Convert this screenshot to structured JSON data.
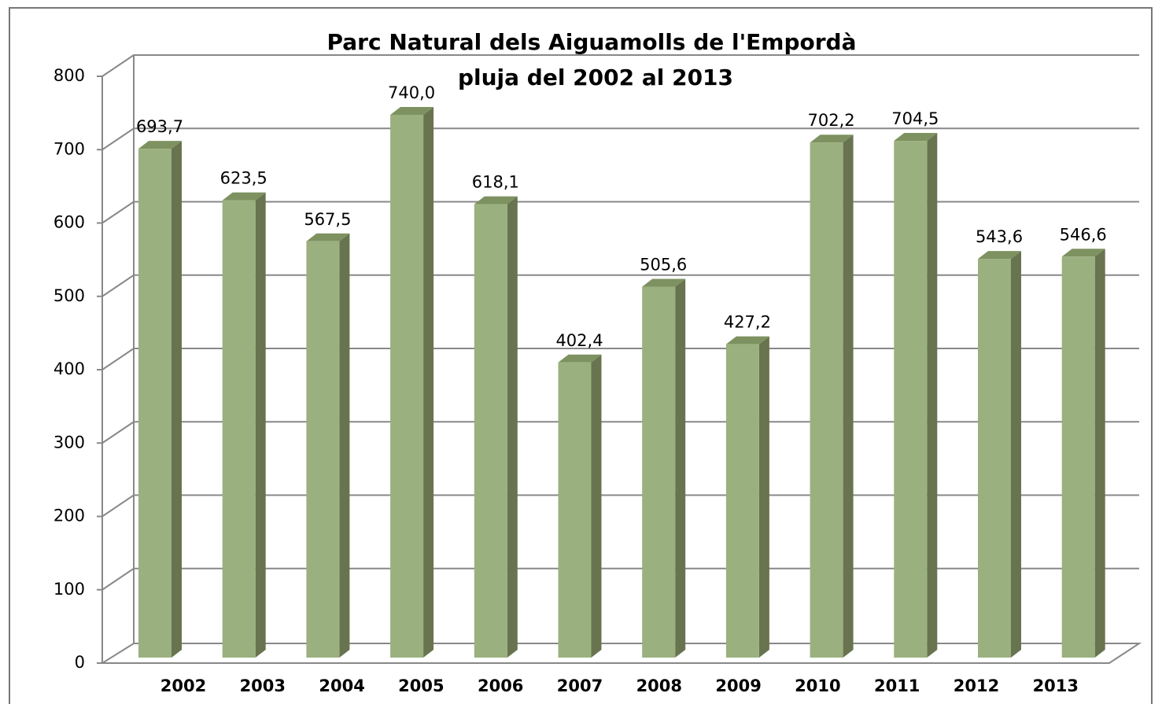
{
  "chart_data": {
    "type": "bar3d",
    "title": "Parc Natural dels Aiguamolls de l'Empordà",
    "subtitle": "pluja  del 2002 al 2013",
    "categories": [
      "2002",
      "2003",
      "2004",
      "2005",
      "2006",
      "2007",
      "2008",
      "2009",
      "2010",
      "2011",
      "2012",
      "2013"
    ],
    "values": [
      693.7,
      623.5,
      567.5,
      740.0,
      618.1,
      402.4,
      505.6,
      427.2,
      702.2,
      704.5,
      543.6,
      546.6
    ],
    "value_labels": [
      "693,7",
      "623,5",
      "567,5",
      "740,0",
      "618,1",
      "402,4",
      "505,6",
      "427,2",
      "702,2",
      "704,5",
      "543,6",
      "546,6"
    ],
    "color": "#9bb07f",
    "ylim": [
      0,
      800
    ],
    "yticks": [
      0,
      100,
      200,
      300,
      400,
      500,
      600,
      700,
      800
    ],
    "grid": true
  }
}
